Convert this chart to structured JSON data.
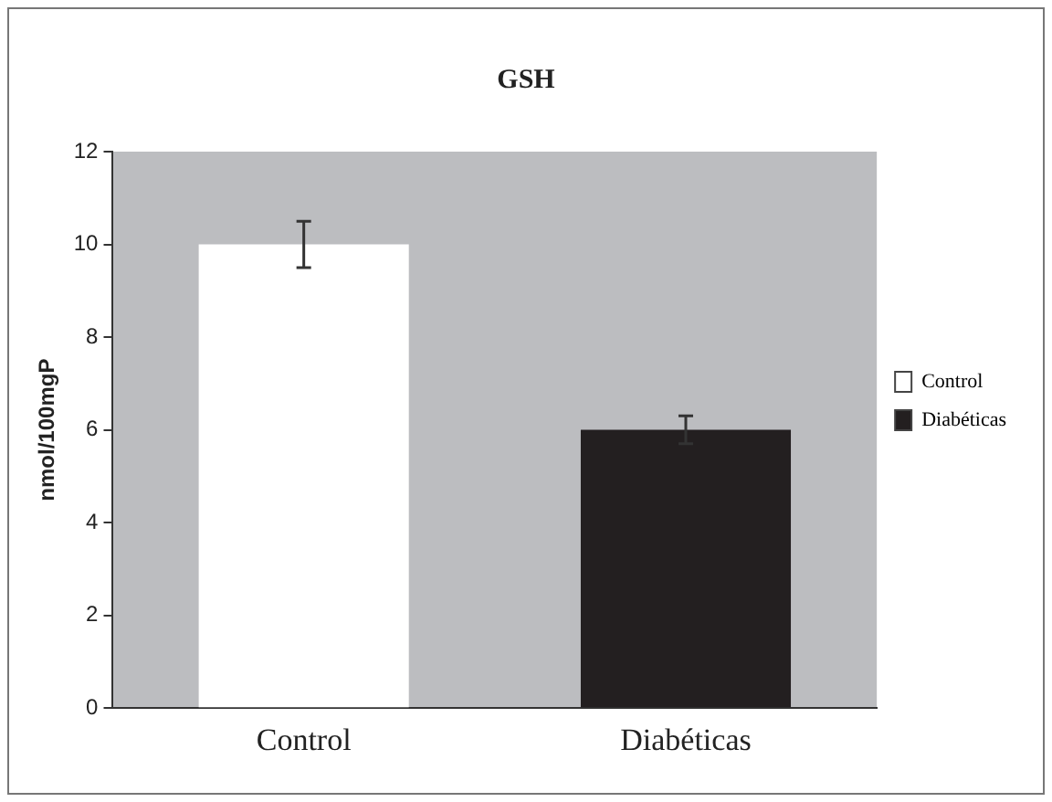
{
  "chart_data": {
    "type": "bar",
    "title": "GSH",
    "ylabel": "nmol/100mgP",
    "categories": [
      "Control",
      "Diabéticas"
    ],
    "series": [
      {
        "name": "Control",
        "color": "#ffffff",
        "values": [
          10,
          null
        ],
        "errors": [
          0.5,
          null
        ]
      },
      {
        "name": "Diabéticas",
        "color": "#231f20",
        "values": [
          null,
          6
        ],
        "errors": [
          null,
          0.3
        ]
      }
    ],
    "ylim": [
      0,
      12
    ],
    "yticks": [
      0,
      2,
      4,
      6,
      8,
      10,
      12
    ],
    "legend": "right"
  }
}
